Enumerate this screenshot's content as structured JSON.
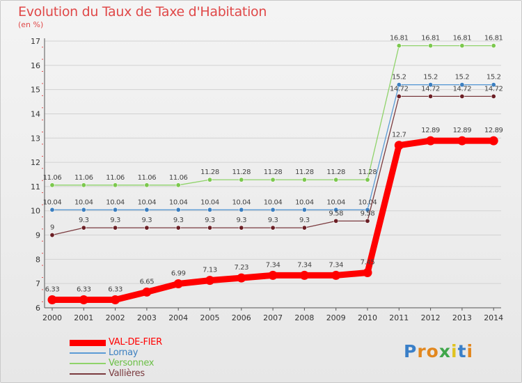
{
  "title": "Evolution du Taux de Taxe d'Habitation",
  "subtitle": "(en %)",
  "logo": {
    "text": "Proxiti",
    "colors": [
      "#3a7fc8",
      "#e2871e",
      "#e2871e",
      "#3fa64a",
      "#e0c320",
      "#3a7fc8",
      "#e2871e"
    ]
  },
  "chart_data": {
    "type": "line",
    "title": "Evolution du Taux de Taxe d'Habitation",
    "ylabel": "(en %)",
    "xlabel": "",
    "x": [
      "2000",
      "2001",
      "2002",
      "2003",
      "2004",
      "2005",
      "2006",
      "2007",
      "2008",
      "2009",
      "2010",
      "2011",
      "2012",
      "2013",
      "2014"
    ],
    "ylim": [
      6,
      17
    ],
    "yticks": [
      6,
      7,
      8,
      9,
      10,
      11,
      12,
      13,
      14,
      15,
      16,
      17
    ],
    "grid": true,
    "legend": "bottom-left",
    "series": [
      {
        "name": "Versonnex",
        "color": "#8fd36a",
        "marker": "#7cc84e",
        "values": [
          11.06,
          11.06,
          11.06,
          11.06,
          11.06,
          11.28,
          11.28,
          11.28,
          11.28,
          11.28,
          11.28,
          16.81,
          16.81,
          16.81,
          16.81
        ],
        "labels": [
          "11.06",
          "11.06",
          "11.06",
          "11.06",
          "11.06",
          "11.28",
          "11.28",
          "11.28",
          "11.28",
          "11.28",
          "11.28",
          "16.81",
          "16.81",
          "16.81",
          "16.81"
        ]
      },
      {
        "name": "Lornay",
        "color": "#5b9bd5",
        "marker": "#3c7fc0",
        "values": [
          10.04,
          10.04,
          10.04,
          10.04,
          10.04,
          10.04,
          10.04,
          10.04,
          10.04,
          10.04,
          10.04,
          15.2,
          15.2,
          15.2,
          15.2
        ],
        "labels": [
          "10.04",
          "10.04",
          "10.04",
          "10.04",
          "10.04",
          "10.04",
          "10.04",
          "10.04",
          "10.04",
          "10.04",
          "10.04",
          "15.2",
          "15.2",
          "15.2",
          "15.2"
        ]
      },
      {
        "name": "Vallières",
        "color": "#7a3a3e",
        "marker": "#6b1f25",
        "values": [
          9,
          9.3,
          9.3,
          9.3,
          9.3,
          9.3,
          9.3,
          9.3,
          9.3,
          9.58,
          9.58,
          14.72,
          14.72,
          14.72,
          14.72
        ],
        "labels": [
          "9",
          "9.3",
          "9.3",
          "9.3",
          "9.3",
          "9.3",
          "9.3",
          "9.3",
          "9.3",
          "9.58",
          "9.58",
          "14.72",
          "14.72",
          "14.72",
          "14.72"
        ]
      },
      {
        "name": "VAL-DE-FIER",
        "color": "#ff0000",
        "marker": "#ff0000",
        "values": [
          6.33,
          6.33,
          6.33,
          6.65,
          6.99,
          7.13,
          7.23,
          7.34,
          7.34,
          7.34,
          7.45,
          12.7,
          12.89,
          12.89,
          12.89
        ],
        "labels": [
          "6.33",
          "6.33",
          "6.33",
          "6.65",
          "6.99",
          "7.13",
          "7.23",
          "7.34",
          "7.34",
          "7.34",
          "7.45",
          "12.7",
          "12.89",
          "12.89",
          "12.89"
        ]
      }
    ],
    "legend_order": [
      "VAL-DE-FIER",
      "Lornay",
      "Versonnex",
      "Vallières"
    ]
  }
}
